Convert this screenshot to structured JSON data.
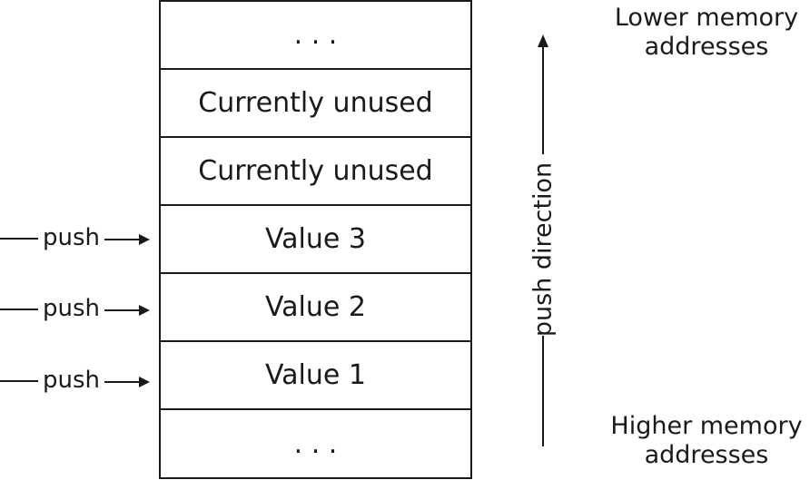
{
  "stack": {
    "cells": [
      {
        "label": ". . ."
      },
      {
        "label": "Currently unused"
      },
      {
        "label": "Currently unused"
      },
      {
        "label": "Value 3"
      },
      {
        "label": "Value 2"
      },
      {
        "label": "Value 1"
      },
      {
        "label": ". . ."
      }
    ]
  },
  "push_labels": [
    "push",
    "push",
    "push"
  ],
  "addresses": {
    "lower_line1": "Lower memory",
    "lower_line2": "addresses",
    "higher_line1": "Higher memory",
    "higher_line2": "addresses"
  },
  "direction": {
    "label": "push direction"
  },
  "colors": {
    "ink": "#1a1a1a",
    "background": "#ffffff"
  }
}
